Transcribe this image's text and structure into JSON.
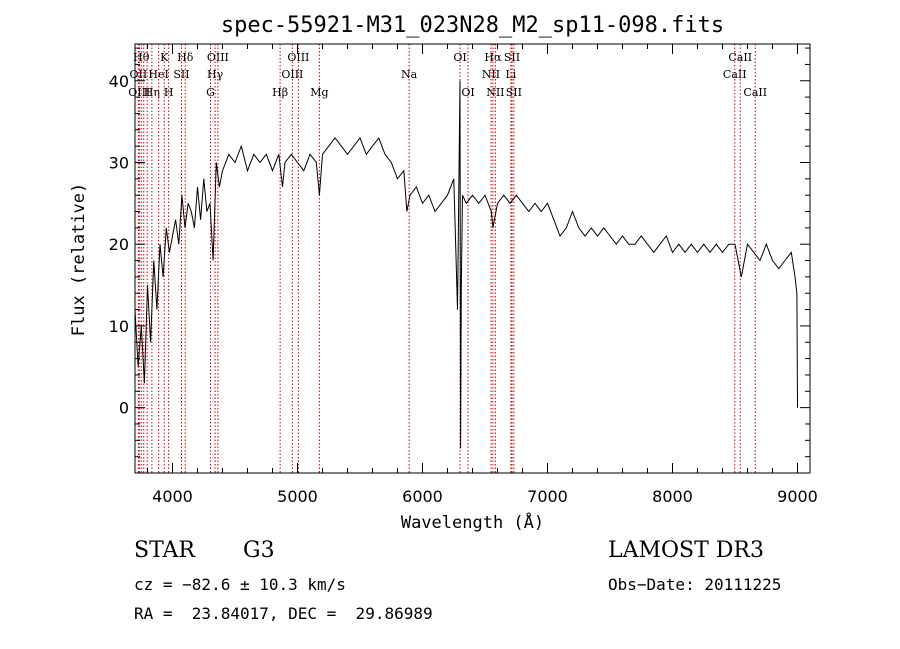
{
  "chart_data": {
    "type": "line",
    "title": "spec-55921-M31_023N28_M2_sp11-098.fits",
    "xlabel": "Wavelength (Å)",
    "ylabel": "Flux (relative)",
    "xlim": [
      3700,
      9100
    ],
    "ylim": [
      -8,
      44.5
    ],
    "xticks": [
      4000,
      5000,
      6000,
      7000,
      8000,
      9000
    ],
    "yticks": [
      0,
      10,
      20,
      30,
      40
    ],
    "x_minor_step": 200,
    "y_minor_step": 2,
    "grid": false,
    "line_color": "#000000",
    "marker_color": "#cc0000",
    "series": [
      {
        "name": "spectrum",
        "x": [
          3700,
          3725,
          3750,
          3775,
          3800,
          3825,
          3850,
          3875,
          3900,
          3925,
          3950,
          3975,
          4000,
          4025,
          4050,
          4075,
          4100,
          4125,
          4150,
          4175,
          4200,
          4225,
          4250,
          4275,
          4300,
          4325,
          4350,
          4375,
          4400,
          4450,
          4500,
          4550,
          4600,
          4650,
          4700,
          4750,
          4800,
          4850,
          4880,
          4900,
          4950,
          5000,
          5050,
          5100,
          5150,
          5175,
          5200,
          5250,
          5300,
          5350,
          5400,
          5450,
          5500,
          5550,
          5600,
          5650,
          5700,
          5750,
          5800,
          5850,
          5875,
          5900,
          5950,
          6000,
          6050,
          6100,
          6150,
          6200,
          6250,
          6280,
          6300,
          6305,
          6310,
          6320,
          6350,
          6400,
          6450,
          6500,
          6550,
          6563,
          6600,
          6650,
          6700,
          6750,
          6800,
          6850,
          6900,
          6950,
          7000,
          7050,
          7100,
          7150,
          7200,
          7250,
          7300,
          7350,
          7400,
          7450,
          7500,
          7550,
          7600,
          7650,
          7700,
          7750,
          7800,
          7850,
          7900,
          7950,
          8000,
          8050,
          8100,
          8150,
          8200,
          8250,
          8300,
          8350,
          8400,
          8450,
          8500,
          8550,
          8600,
          8650,
          8700,
          8750,
          8800,
          8850,
          8900,
          8950,
          8980,
          8995,
          9000
        ],
        "y": [
          12,
          5,
          10,
          3,
          15,
          8,
          18,
          12,
          20,
          16,
          22,
          19,
          21,
          23,
          20,
          26,
          22,
          25,
          24,
          22,
          27,
          23,
          28,
          24,
          25,
          18,
          30,
          27,
          29,
          31,
          30,
          32,
          29,
          31,
          30,
          31,
          29,
          31,
          27,
          30,
          31,
          30,
          29,
          31,
          30,
          26,
          31,
          32,
          33,
          32,
          31,
          32,
          33,
          31,
          32,
          33,
          31,
          30,
          28,
          29,
          24,
          26,
          27,
          25,
          26,
          24,
          25,
          26,
          28,
          12,
          40,
          -5,
          15,
          26,
          25,
          26,
          25,
          26,
          24,
          22,
          25,
          26,
          25,
          26,
          25,
          24,
          25,
          24,
          25,
          23,
          21,
          22,
          24,
          22,
          21,
          22,
          21,
          22,
          21,
          20,
          21,
          20,
          20,
          21,
          20,
          19,
          20,
          21,
          19,
          20,
          19,
          20,
          19,
          20,
          19,
          20,
          19,
          20,
          20,
          16,
          20,
          19,
          18,
          20,
          18,
          17,
          18,
          19,
          16,
          14,
          0
        ]
      }
    ],
    "lines": [
      {
        "x": 3750,
        "label": "Hθ",
        "row": 0,
        "al": "m"
      },
      {
        "x": 3727,
        "label": "OII",
        "row": 1,
        "al": "m"
      },
      {
        "x": 3734,
        "label": "OIII",
        "row": 2,
        "al": "m"
      },
      {
        "x": 3770,
        "label": "",
        "row": 2,
        "al": "m"
      },
      {
        "x": 3797,
        "label": "",
        "row": 1,
        "al": "m"
      },
      {
        "x": 3835,
        "label": "Hη",
        "row": 2,
        "al": "m"
      },
      {
        "x": 3889,
        "label": "HeI",
        "row": 1,
        "al": "m"
      },
      {
        "x": 3934,
        "label": "K",
        "row": 0,
        "al": "m"
      },
      {
        "x": 3969,
        "label": "H",
        "row": 2,
        "al": "m"
      },
      {
        "x": 4072,
        "label": "SII",
        "row": 1,
        "al": "m"
      },
      {
        "x": 4102,
        "label": "Hδ",
        "row": 0,
        "al": "m"
      },
      {
        "x": 4304,
        "label": "G",
        "row": 2,
        "al": "m"
      },
      {
        "x": 4341,
        "label": "Hγ",
        "row": 1,
        "al": "m"
      },
      {
        "x": 4363,
        "label": "OIII",
        "row": 0,
        "al": "m"
      },
      {
        "x": 4861,
        "label": "Hβ",
        "row": 2,
        "al": "m"
      },
      {
        "x": 4959,
        "label": "OIII",
        "row": 1,
        "al": "m"
      },
      {
        "x": 5007,
        "label": "OIII",
        "row": 0,
        "al": "m"
      },
      {
        "x": 5175,
        "label": "Mg",
        "row": 2,
        "al": "m"
      },
      {
        "x": 5893,
        "label": "Na",
        "row": 1,
        "al": "m"
      },
      {
        "x": 6300,
        "label": "OI",
        "row": 0,
        "al": "m"
      },
      {
        "x": 6364,
        "label": "OI",
        "row": 2,
        "al": "m"
      },
      {
        "x": 6548,
        "label": "NII",
        "row": 1,
        "al": "m"
      },
      {
        "x": 6563,
        "label": "Hα",
        "row": 0,
        "al": "m"
      },
      {
        "x": 6583,
        "label": "NII",
        "row": 2,
        "al": "m"
      },
      {
        "x": 6707,
        "label": "Li",
        "row": 1,
        "al": "m"
      },
      {
        "x": 6716,
        "label": "SII",
        "row": 0,
        "al": "m"
      },
      {
        "x": 6731,
        "label": "SII",
        "row": 2,
        "al": "m"
      },
      {
        "x": 8498,
        "label": "CaII",
        "row": 1,
        "al": "m"
      },
      {
        "x": 8542,
        "label": "CaII",
        "row": 0,
        "al": "m"
      },
      {
        "x": 8662,
        "label": "CaII",
        "row": 2,
        "al": "m"
      }
    ]
  },
  "info": {
    "object_class": "STAR",
    "subclass": "G3",
    "survey": "LAMOST DR3",
    "redshift": "cz = −82.6 ± 10.3 km/s",
    "obs_date": "Obs−Date: 20111225",
    "coords": "RA =  23.84017, DEC =  29.86989"
  }
}
